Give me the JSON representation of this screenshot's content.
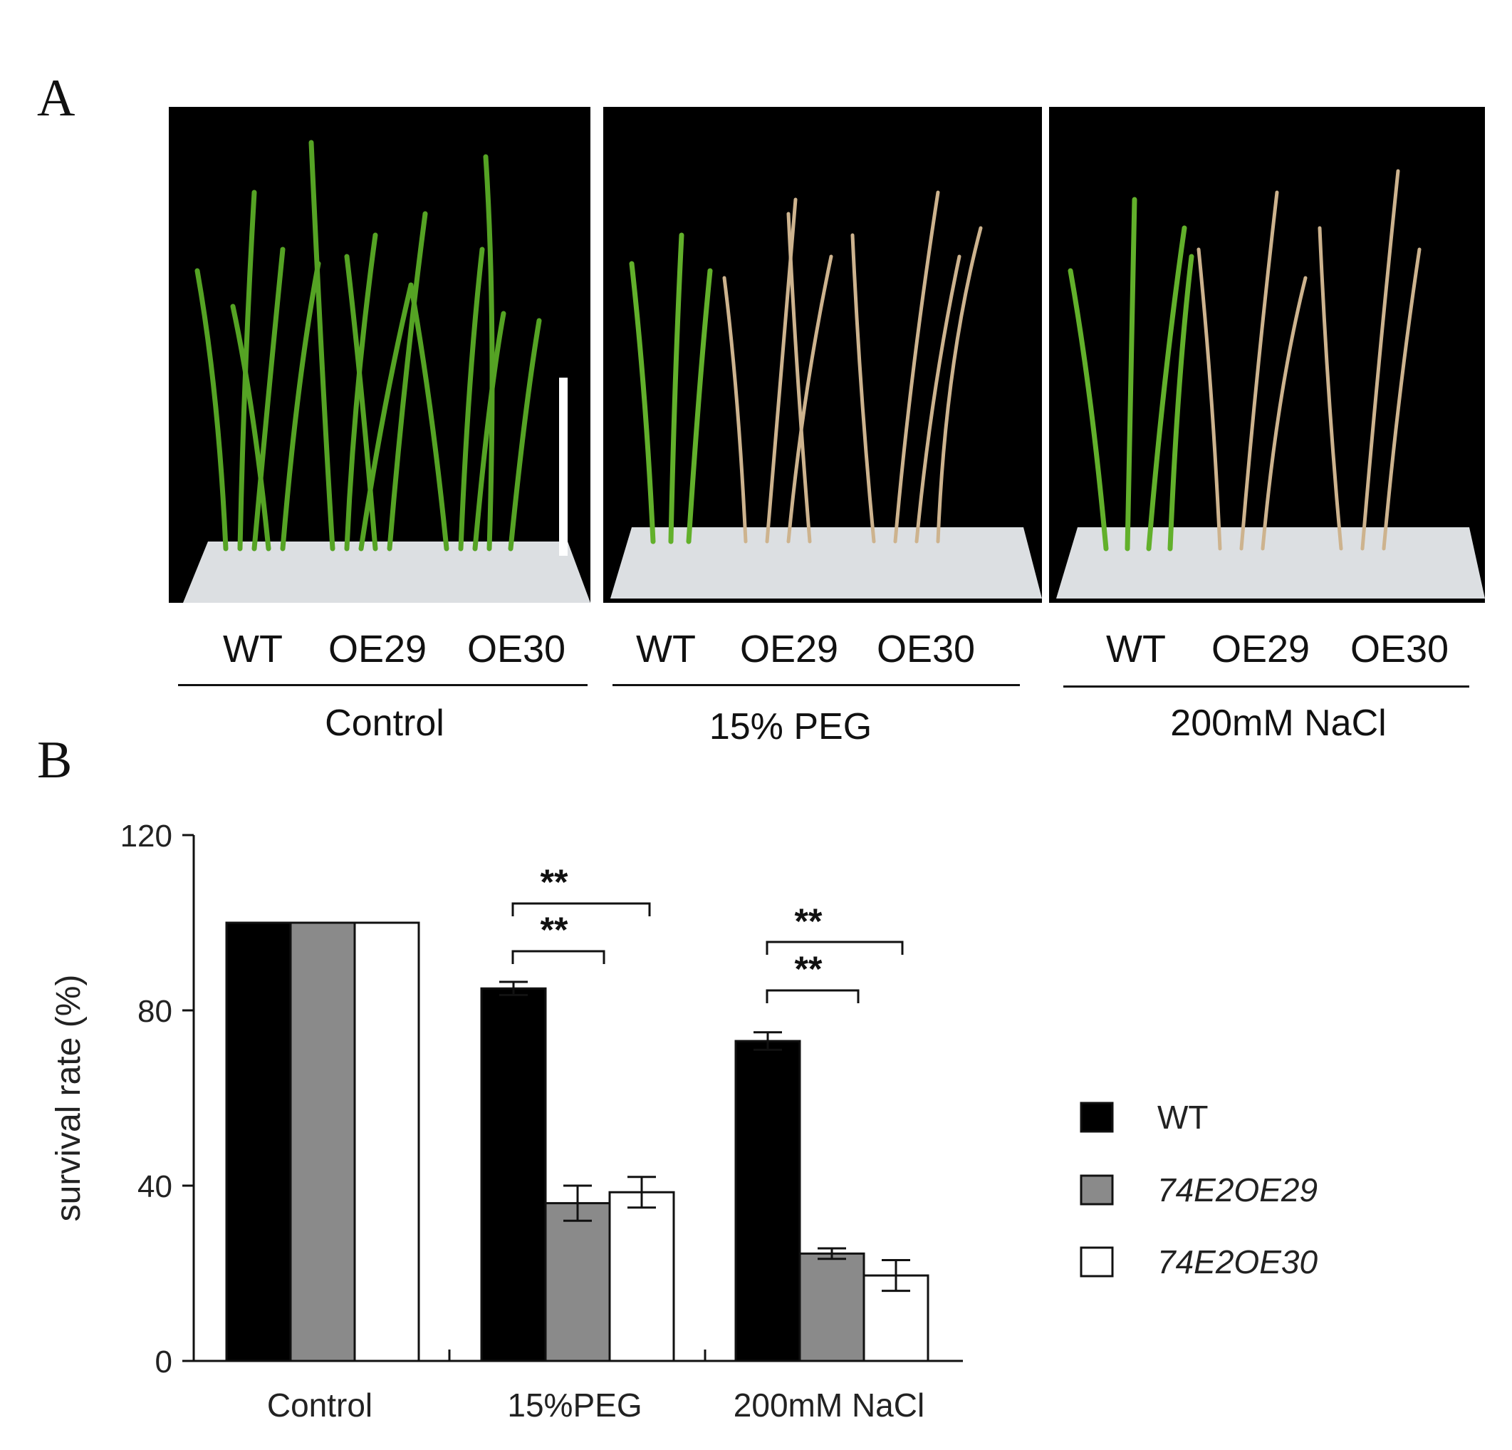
{
  "panel_a": {
    "letter": "A",
    "photos": [
      {
        "lines": [
          "WT",
          "OE29",
          "OE30"
        ],
        "condition": "Control"
      },
      {
        "lines": [
          "WT",
          "OE29",
          "OE30"
        ],
        "condition": "15% PEG"
      },
      {
        "lines": [
          "WT",
          "OE29",
          "OE30"
        ],
        "condition": "200mM NaCl"
      }
    ]
  },
  "panel_b": {
    "letter": "B"
  },
  "chart_data": {
    "type": "bar",
    "categories": [
      "Control",
      "15%PEG",
      "200mM NaCl"
    ],
    "series": [
      {
        "name": "WT",
        "values": [
          100,
          85,
          73
        ],
        "errors": [
          0,
          1.5,
          2
        ],
        "color": "#000000",
        "italic": false
      },
      {
        "name": "74E2OE29",
        "values": [
          100,
          36,
          24.5
        ],
        "errors": [
          0,
          4,
          1.2
        ],
        "color": "#8a8a8a",
        "italic": true
      },
      {
        "name": "74E2OE30",
        "values": [
          100,
          38.5,
          19.5
        ],
        "errors": [
          0,
          3.5,
          3.5
        ],
        "color": "#ffffff",
        "italic": true
      }
    ],
    "significance": [
      {
        "category": "15%PEG",
        "from_series": 0,
        "to_series": 1,
        "label": "**"
      },
      {
        "category": "15%PEG",
        "from_series": 0,
        "to_series": 2,
        "label": "**"
      },
      {
        "category": "200mM NaCl",
        "from_series": 0,
        "to_series": 1,
        "label": "**"
      },
      {
        "category": "200mM NaCl",
        "from_series": 0,
        "to_series": 2,
        "label": "**"
      }
    ],
    "ylabel": "survival rate (%)",
    "ylim": [
      0,
      120
    ],
    "yticks": [
      0,
      40,
      80,
      120
    ],
    "grid": false,
    "legend": "right"
  }
}
